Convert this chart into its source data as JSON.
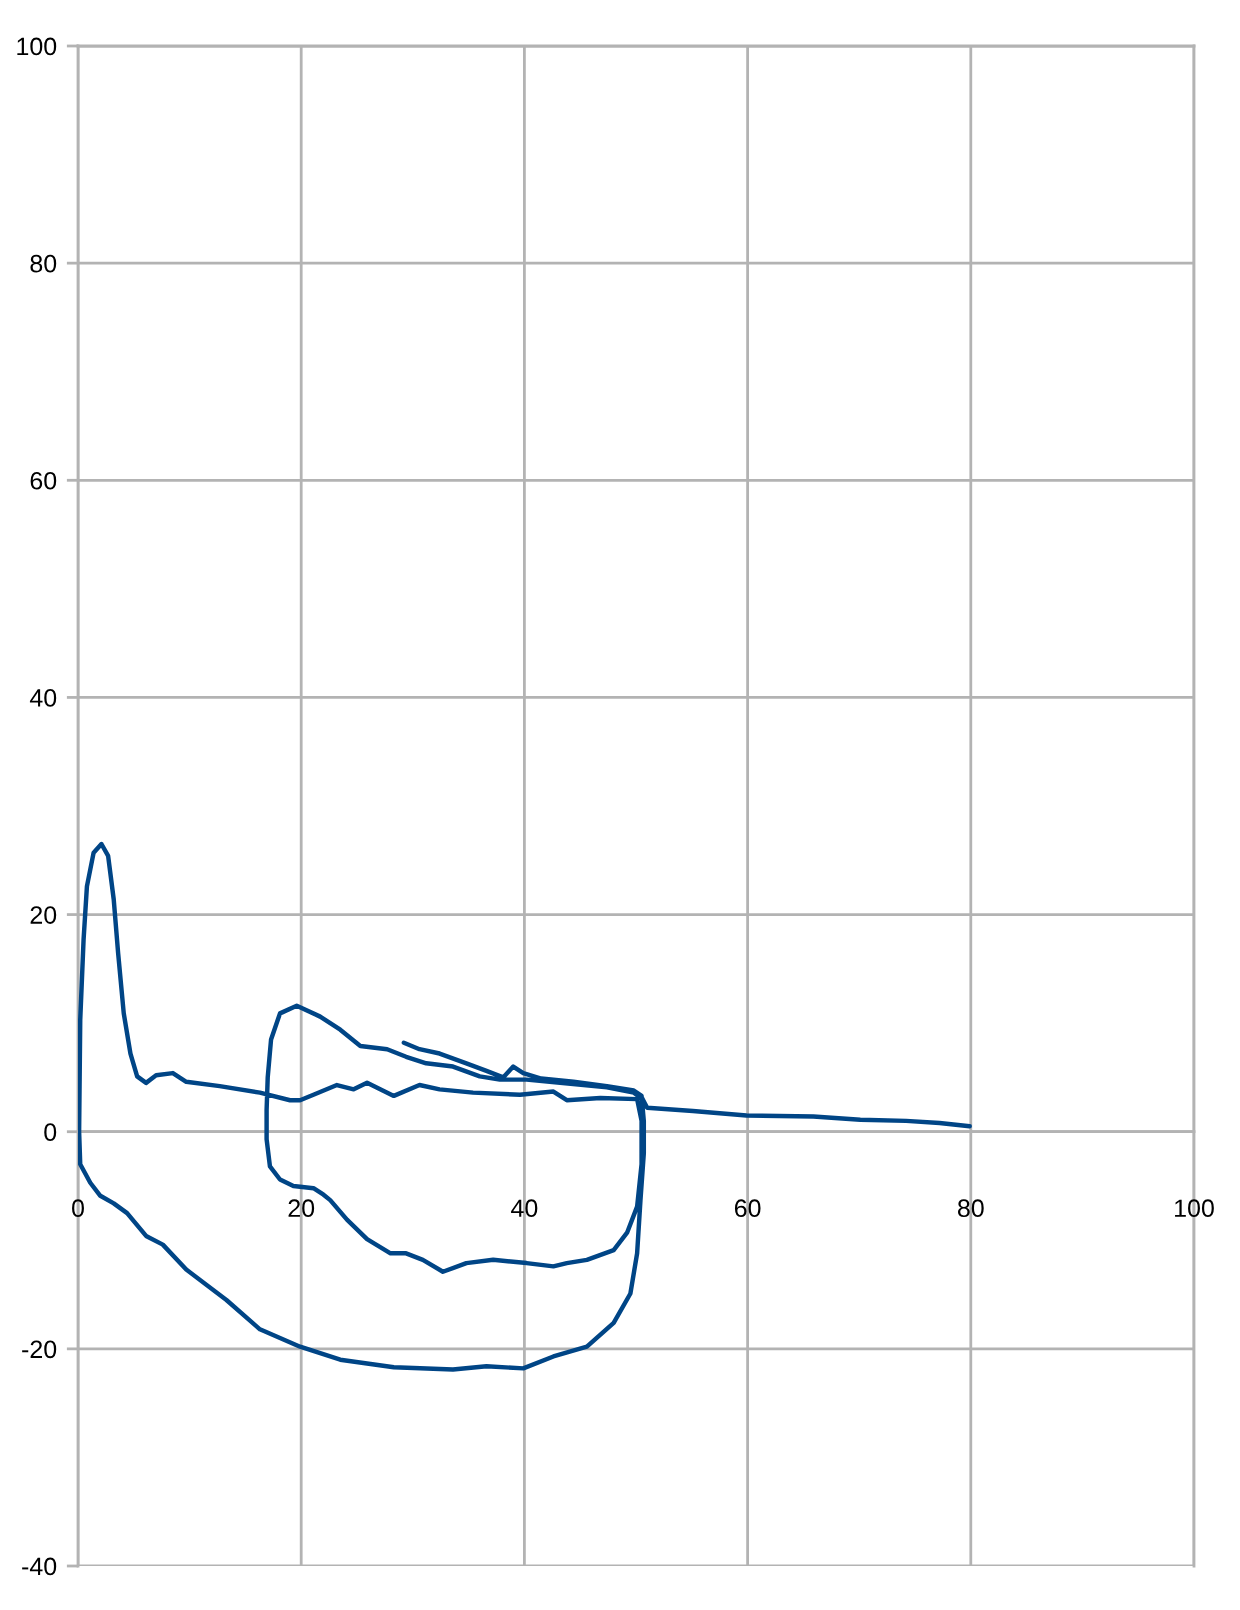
{
  "chart_data": {
    "type": "line",
    "xlim": [
      0,
      100
    ],
    "ylim": [
      -40,
      100
    ],
    "xticks": [
      0,
      20,
      40,
      60,
      80,
      100
    ],
    "yticks": [
      -40,
      -20,
      0,
      20,
      40,
      60,
      80,
      100
    ],
    "grid": true,
    "series": [
      {
        "color": "#004586",
        "x": [
          29.2,
          30.6,
          32.4,
          34.8,
          36.6,
          38.1,
          39.0,
          39.9,
          41.5,
          44.4,
          47.4,
          49.8,
          50.5,
          50.7,
          50.7,
          50.4,
          50.1,
          49.5,
          48.0,
          45.6,
          42.6,
          39.9,
          36.6,
          33.6,
          28.3,
          23.5,
          19.9,
          16.3,
          13.3,
          9.7,
          7.6,
          6.1,
          4.4,
          3.2,
          2.0,
          1.1,
          0.2,
          0.1,
          0.2,
          0.5,
          0.8,
          1.4,
          2.1,
          2.7,
          3.2,
          3.6,
          4.1,
          4.7,
          5.3,
          6.1,
          7.0,
          8.5,
          9.7,
          12.7,
          16.3,
          19.0,
          19.9,
          21.1,
          23.2,
          24.7,
          25.9,
          28.3,
          30.6,
          32.4,
          35.4,
          39.6,
          42.6,
          43.8,
          46.8,
          50.1,
          50.5,
          50.5,
          50.1,
          49.2,
          48.0,
          45.6,
          43.8,
          42.6,
          40.2,
          37.2,
          34.8,
          32.7,
          30.9,
          29.4,
          28.0,
          25.9,
          24.1,
          22.6,
          22.0,
          21.1,
          19.3,
          18.1,
          17.2,
          16.9,
          16.9,
          17.0,
          17.3,
          18.1,
          19.6,
          21.7,
          23.5,
          25.3,
          27.7,
          29.4,
          31.2,
          33.6,
          36.0,
          37.8,
          40.2,
          43.2,
          47.4,
          49.8,
          50.6,
          51.0,
          55.1,
          59.9,
          65.9,
          70.1,
          74.2,
          77.2,
          79.9
        ],
        "values": [
          8.2,
          7.6,
          7.2,
          6.3,
          5.6,
          5.0,
          6.0,
          5.4,
          4.9,
          4.6,
          4.2,
          3.8,
          3.3,
          1.0,
          -2.0,
          -6.3,
          -11.2,
          -14.9,
          -17.6,
          -19.8,
          -20.7,
          -21.8,
          -21.6,
          -21.9,
          -21.7,
          -21.0,
          -19.8,
          -18.2,
          -15.5,
          -12.7,
          -10.4,
          -9.6,
          -7.5,
          -6.6,
          -5.9,
          -4.7,
          -3.0,
          0,
          10.3,
          17.7,
          22.6,
          25.7,
          26.5,
          25.4,
          21.4,
          16.4,
          10.9,
          7.2,
          5.1,
          4.5,
          5.2,
          5.4,
          4.6,
          4.2,
          3.6,
          2.9,
          2.9,
          3.4,
          4.3,
          3.9,
          4.5,
          3.3,
          4.3,
          3.9,
          3.6,
          3.4,
          3.7,
          2.9,
          3.1,
          3.0,
          1.0,
          -3.0,
          -6.9,
          -9.3,
          -10.9,
          -11.8,
          -12.1,
          -12.4,
          -12.1,
          -11.8,
          -12.1,
          -12.9,
          -11.8,
          -11.2,
          -11.2,
          -9.9,
          -8.1,
          -6.3,
          -5.8,
          -5.2,
          -5.0,
          -4.4,
          -3.2,
          -0.7,
          2.0,
          5.0,
          8.5,
          10.9,
          11.6,
          10.6,
          9.4,
          7.9,
          7.6,
          6.9,
          6.3,
          6.0,
          5.1,
          4.8,
          4.8,
          4.5,
          4.1,
          3.6,
          3.0,
          2.2,
          1.9,
          1.5,
          1.4,
          1.1,
          1.0,
          0.8,
          0.5
        ]
      }
    ]
  }
}
